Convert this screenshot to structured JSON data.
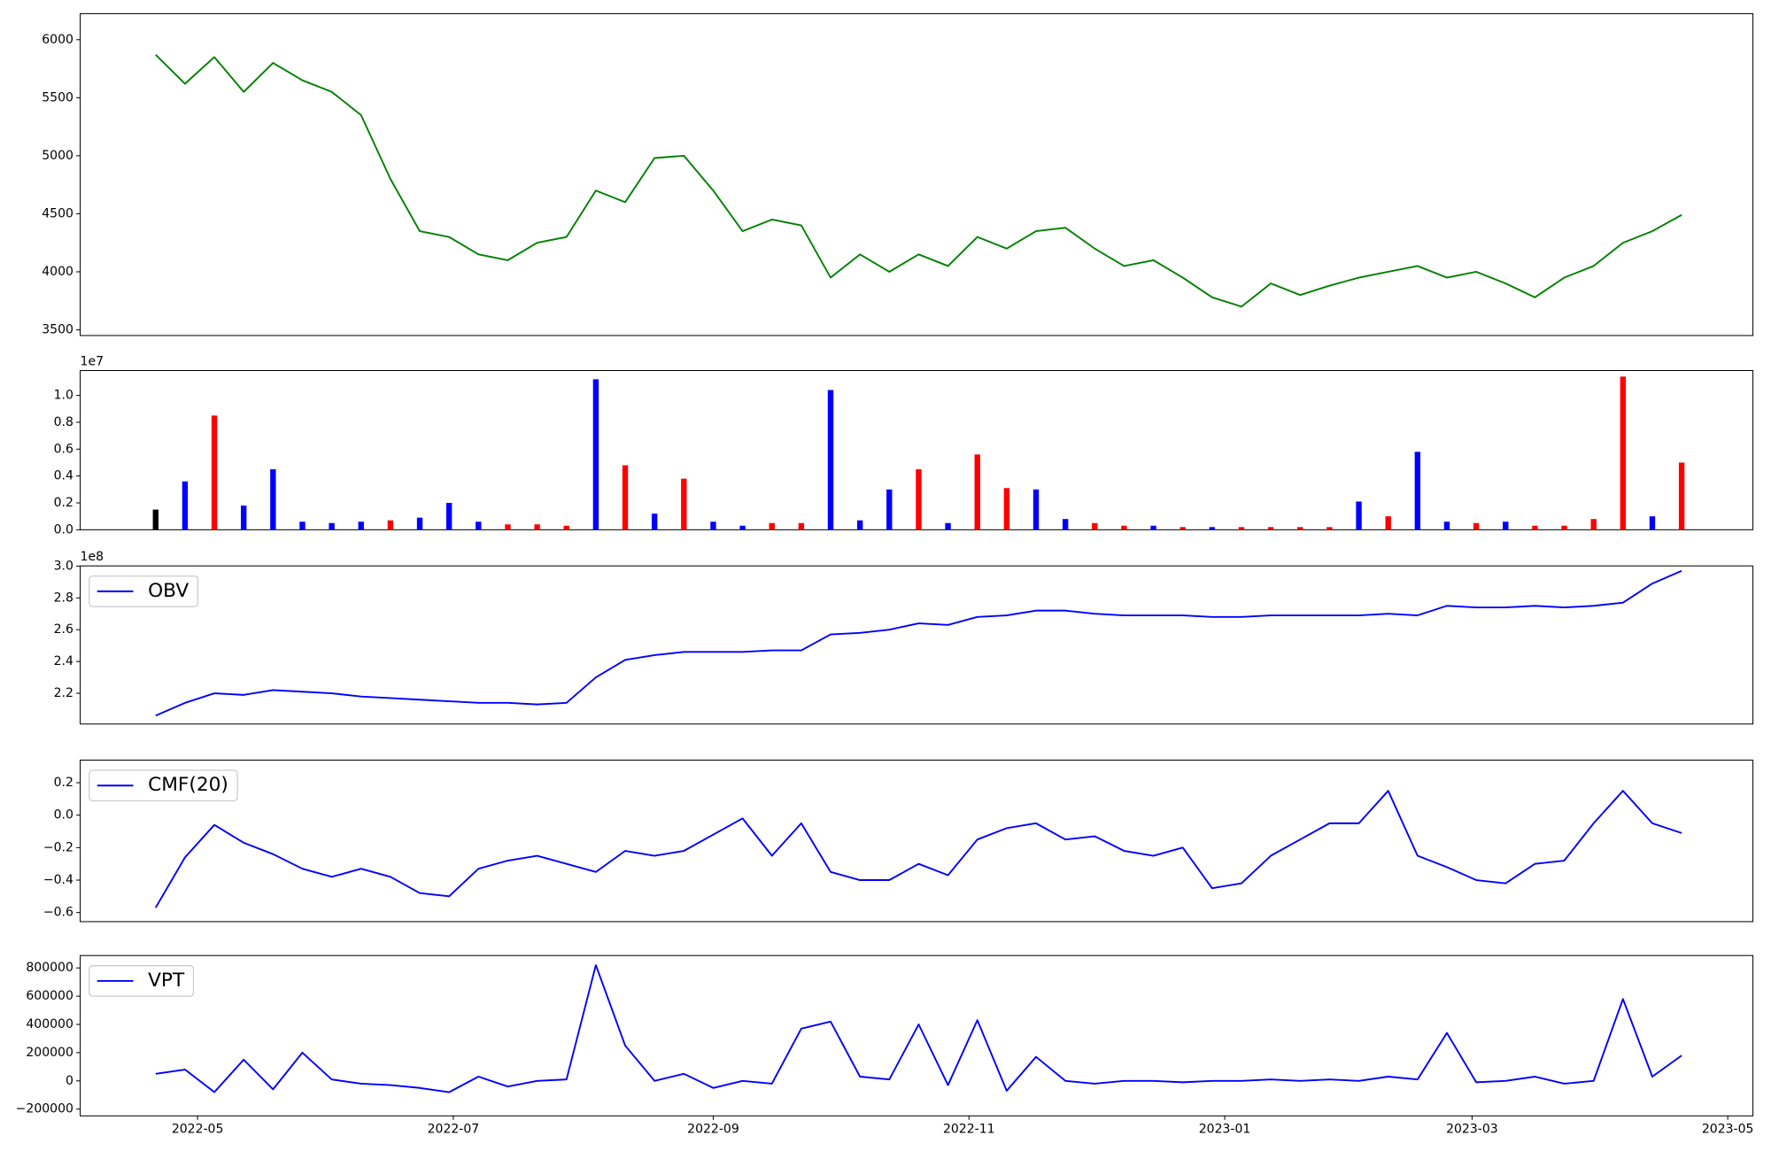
{
  "chart_data": [
    {
      "type": "line",
      "color": "green",
      "x": [
        "2022-04-21",
        "2022-04-28",
        "2022-05-05",
        "2022-05-12",
        "2022-05-19",
        "2022-05-26",
        "2022-06-02",
        "2022-06-09",
        "2022-06-16",
        "2022-06-23",
        "2022-06-30",
        "2022-07-07",
        "2022-07-14",
        "2022-07-21",
        "2022-07-28",
        "2022-08-04",
        "2022-08-11",
        "2022-08-18",
        "2022-08-25",
        "2022-09-01",
        "2022-09-08",
        "2022-09-15",
        "2022-09-22",
        "2022-09-29",
        "2022-10-06",
        "2022-10-13",
        "2022-10-20",
        "2022-10-27",
        "2022-11-03",
        "2022-11-10",
        "2022-11-17",
        "2022-11-24",
        "2022-12-01",
        "2022-12-08",
        "2022-12-15",
        "2022-12-22",
        "2022-12-29",
        "2023-01-05",
        "2023-01-12",
        "2023-01-19",
        "2023-01-26",
        "2023-02-02",
        "2023-02-09",
        "2023-02-16",
        "2023-02-23",
        "2023-03-02",
        "2023-03-09",
        "2023-03-16",
        "2023-03-23",
        "2023-03-30",
        "2023-04-06",
        "2023-04-13",
        "2023-04-20"
      ],
      "values": [
        5870,
        5620,
        5850,
        5550,
        5800,
        5650,
        5550,
        5350,
        4800,
        4350,
        4300,
        4150,
        4100,
        4250,
        4300,
        4700,
        4600,
        4980,
        5000,
        4700,
        4350,
        4450,
        4400,
        3950,
        4150,
        4000,
        4150,
        4050,
        4300,
        4200,
        4350,
        4380,
        4200,
        4050,
        4100,
        3950,
        3780,
        3700,
        3900,
        3800,
        3880,
        3950,
        4000,
        4050,
        3950,
        4000,
        3900,
        3780,
        3950,
        4050,
        4250,
        4350,
        4490
      ],
      "xlim": [
        "2022-04-03",
        "2023-05-07"
      ],
      "ylim": [
        3451,
        6224
      ],
      "yticks": [
        3500,
        4000,
        4500,
        5000,
        5500,
        6000
      ]
    },
    {
      "type": "bar",
      "offset_label": "1e7",
      "x": [
        "2022-04-21",
        "2022-04-28",
        "2022-05-05",
        "2022-05-12",
        "2022-05-19",
        "2022-05-26",
        "2022-06-02",
        "2022-06-09",
        "2022-06-16",
        "2022-06-23",
        "2022-06-30",
        "2022-07-07",
        "2022-07-14",
        "2022-07-21",
        "2022-07-28",
        "2022-08-04",
        "2022-08-11",
        "2022-08-18",
        "2022-08-25",
        "2022-09-01",
        "2022-09-08",
        "2022-09-15",
        "2022-09-22",
        "2022-09-29",
        "2022-10-06",
        "2022-10-13",
        "2022-10-20",
        "2022-10-27",
        "2022-11-03",
        "2022-11-10",
        "2022-11-17",
        "2022-11-24",
        "2022-12-01",
        "2022-12-08",
        "2022-12-15",
        "2022-12-22",
        "2022-12-29",
        "2023-01-05",
        "2023-01-12",
        "2023-01-19",
        "2023-01-26",
        "2023-02-02",
        "2023-02-09",
        "2023-02-16",
        "2023-02-23",
        "2023-03-02",
        "2023-03-09",
        "2023-03-16",
        "2023-03-23",
        "2023-03-30",
        "2023-04-06",
        "2023-04-13",
        "2023-04-20"
      ],
      "values": [
        1500000,
        3600000,
        8500000,
        1800000,
        4500000,
        600000,
        500000,
        600000,
        700000,
        900000,
        2000000,
        600000,
        400000,
        400000,
        300000,
        11200000,
        4800000,
        1200000,
        3800000,
        600000,
        300000,
        500000,
        500000,
        10400000,
        700000,
        3000000,
        4500000,
        500000,
        5600000,
        3100000,
        3000000,
        800000,
        500000,
        300000,
        300000,
        200000,
        200000,
        200000,
        200000,
        200000,
        200000,
        2100000,
        1000000,
        5800000,
        600000,
        500000,
        600000,
        300000,
        300000,
        800000,
        11400000,
        1000000,
        5000000
      ],
      "colors": [
        "black",
        "blue",
        "red",
        "blue",
        "blue",
        "blue",
        "blue",
        "blue",
        "red",
        "blue",
        "blue",
        "blue",
        "red",
        "red",
        "red",
        "blue",
        "red",
        "blue",
        "red",
        "blue",
        "blue",
        "red",
        "red",
        "blue",
        "blue",
        "blue",
        "red",
        "blue",
        "red",
        "red",
        "blue",
        "blue",
        "red",
        "red",
        "blue",
        "red",
        "blue",
        "red",
        "red",
        "red",
        "red",
        "blue",
        "red",
        "blue",
        "blue",
        "red",
        "blue",
        "red",
        "red",
        "red",
        "red",
        "blue",
        "red"
      ],
      "xlim": [
        "2022-04-03",
        "2023-05-07"
      ],
      "ylim": [
        0,
        11850000
      ],
      "yticks": [
        {
          "value": 0,
          "label": "0.0"
        },
        {
          "value": 2000000,
          "label": "0.2"
        },
        {
          "value": 4000000,
          "label": "0.4"
        },
        {
          "value": 6000000,
          "label": "0.6"
        },
        {
          "value": 8000000,
          "label": "0.8"
        },
        {
          "value": 10000000,
          "label": "1.0"
        }
      ]
    },
    {
      "type": "line",
      "offset_label": "1e8",
      "legend": "upper left",
      "x": [
        "2022-04-21",
        "2022-04-28",
        "2022-05-05",
        "2022-05-12",
        "2022-05-19",
        "2022-05-26",
        "2022-06-02",
        "2022-06-09",
        "2022-06-16",
        "2022-06-23",
        "2022-06-30",
        "2022-07-07",
        "2022-07-14",
        "2022-07-21",
        "2022-07-28",
        "2022-08-04",
        "2022-08-11",
        "2022-08-18",
        "2022-08-25",
        "2022-09-01",
        "2022-09-08",
        "2022-09-15",
        "2022-09-22",
        "2022-09-29",
        "2022-10-06",
        "2022-10-13",
        "2022-10-20",
        "2022-10-27",
        "2022-11-03",
        "2022-11-10",
        "2022-11-17",
        "2022-11-24",
        "2022-12-01",
        "2022-12-08",
        "2022-12-15",
        "2022-12-22",
        "2022-12-29",
        "2023-01-05",
        "2023-01-12",
        "2023-01-19",
        "2023-01-26",
        "2023-02-02",
        "2023-02-09",
        "2023-02-16",
        "2023-02-23",
        "2023-03-02",
        "2023-03-09",
        "2023-03-16",
        "2023-03-23",
        "2023-03-30",
        "2023-04-06",
        "2023-04-13",
        "2023-04-20"
      ],
      "series": [
        {
          "name": "OBV",
          "color": "blue",
          "values": [
            206000000,
            214000000,
            220000000,
            219000000,
            222000000,
            221000000,
            220000000,
            218000000,
            217000000,
            216000000,
            215000000,
            214000000,
            214000000,
            213000000,
            214000000,
            230000000,
            241000000,
            244000000,
            246000000,
            246000000,
            246000000,
            247000000,
            247000000,
            257000000,
            258000000,
            260000000,
            264000000,
            263000000,
            268000000,
            269000000,
            272000000,
            272000000,
            270000000,
            269000000,
            269000000,
            269000000,
            268000000,
            268000000,
            269000000,
            269000000,
            269000000,
            269000000,
            270000000,
            269000000,
            275000000,
            274000000,
            274000000,
            275000000,
            274000000,
            275000000,
            277000000,
            289000000,
            297000000
          ]
        }
      ],
      "xlim": [
        "2022-04-03",
        "2023-05-07"
      ],
      "ylim": [
        200700000,
        300100000
      ],
      "yticks": [
        {
          "value": 220000000,
          "label": "2.2"
        },
        {
          "value": 240000000,
          "label": "2.4"
        },
        {
          "value": 260000000,
          "label": "2.6"
        },
        {
          "value": 280000000,
          "label": "2.8"
        },
        {
          "value": 300000000,
          "label": "3.0"
        }
      ]
    },
    {
      "type": "line",
      "legend": "upper left",
      "x": [
        "2022-04-21",
        "2022-04-28",
        "2022-05-05",
        "2022-05-12",
        "2022-05-19",
        "2022-05-26",
        "2022-06-02",
        "2022-06-09",
        "2022-06-16",
        "2022-06-23",
        "2022-06-30",
        "2022-07-07",
        "2022-07-14",
        "2022-07-21",
        "2022-07-28",
        "2022-08-04",
        "2022-08-11",
        "2022-08-18",
        "2022-08-25",
        "2022-09-01",
        "2022-09-08",
        "2022-09-15",
        "2022-09-22",
        "2022-09-29",
        "2022-10-06",
        "2022-10-13",
        "2022-10-20",
        "2022-10-27",
        "2022-11-03",
        "2022-11-10",
        "2022-11-17",
        "2022-11-24",
        "2022-12-01",
        "2022-12-08",
        "2022-12-15",
        "2022-12-22",
        "2022-12-29",
        "2023-01-05",
        "2023-01-12",
        "2023-01-19",
        "2023-01-26",
        "2023-02-02",
        "2023-02-09",
        "2023-02-16",
        "2023-02-23",
        "2023-03-02",
        "2023-03-09",
        "2023-03-16",
        "2023-03-23",
        "2023-03-30",
        "2023-04-06",
        "2023-04-13",
        "2023-04-20"
      ],
      "series": [
        {
          "name": "CMF(20)",
          "color": "blue",
          "values": [
            -0.57,
            -0.26,
            -0.06,
            -0.17,
            -0.24,
            -0.33,
            -0.38,
            -0.33,
            -0.38,
            -0.48,
            -0.5,
            -0.33,
            -0.28,
            -0.25,
            -0.3,
            -0.35,
            -0.22,
            -0.25,
            -0.22,
            -0.12,
            -0.02,
            -0.25,
            -0.05,
            -0.35,
            -0.4,
            -0.4,
            -0.3,
            -0.37,
            -0.15,
            -0.08,
            -0.05,
            -0.15,
            -0.13,
            -0.22,
            -0.25,
            -0.2,
            -0.45,
            -0.42,
            -0.25,
            -0.15,
            -0.05,
            -0.05,
            0.15,
            -0.25,
            -0.32,
            -0.4,
            -0.42,
            -0.3,
            -0.28,
            -0.05,
            0.15,
            -0.05,
            -0.11
          ]
        }
      ],
      "xlim": [
        "2022-04-03",
        "2023-05-07"
      ],
      "ylim": [
        -0.656,
        0.339
      ],
      "yticks": [
        {
          "value": -0.6,
          "label": "−0.6"
        },
        {
          "value": -0.4,
          "label": "−0.4"
        },
        {
          "value": -0.2,
          "label": "−0.2"
        },
        {
          "value": 0,
          "label": "0.0"
        },
        {
          "value": 0.2,
          "label": "0.2"
        }
      ]
    },
    {
      "type": "line",
      "legend": "upper left",
      "x": [
        "2022-04-21",
        "2022-04-28",
        "2022-05-05",
        "2022-05-12",
        "2022-05-19",
        "2022-05-26",
        "2022-06-02",
        "2022-06-09",
        "2022-06-16",
        "2022-06-23",
        "2022-06-30",
        "2022-07-07",
        "2022-07-14",
        "2022-07-21",
        "2022-07-28",
        "2022-08-04",
        "2022-08-11",
        "2022-08-18",
        "2022-08-25",
        "2022-09-01",
        "2022-09-08",
        "2022-09-15",
        "2022-09-22",
        "2022-09-29",
        "2022-10-06",
        "2022-10-13",
        "2022-10-20",
        "2022-10-27",
        "2022-11-03",
        "2022-11-10",
        "2022-11-17",
        "2022-11-24",
        "2022-12-01",
        "2022-12-08",
        "2022-12-15",
        "2022-12-22",
        "2022-12-29",
        "2023-01-05",
        "2023-01-12",
        "2023-01-19",
        "2023-01-26",
        "2023-02-02",
        "2023-02-09",
        "2023-02-16",
        "2023-02-23",
        "2023-03-02",
        "2023-03-09",
        "2023-03-16",
        "2023-03-23",
        "2023-03-30",
        "2023-04-06",
        "2023-04-13",
        "2023-04-20"
      ],
      "series": [
        {
          "name": "VPT",
          "color": "blue",
          "values": [
            50000,
            80000,
            -80000,
            150000,
            -60000,
            200000,
            10000,
            -20000,
            -30000,
            -50000,
            -80000,
            30000,
            -40000,
            0,
            10000,
            820000,
            250000,
            0,
            50000,
            -50000,
            0,
            -20000,
            370000,
            420000,
            30000,
            10000,
            400000,
            -30000,
            430000,
            -70000,
            170000,
            0,
            -20000,
            0,
            0,
            -10000,
            0,
            0,
            10000,
            0,
            10000,
            0,
            30000,
            10000,
            340000,
            -10000,
            0,
            30000,
            -20000,
            0,
            580000,
            30000,
            180000
          ]
        }
      ],
      "xlim": [
        "2022-04-03",
        "2023-05-07"
      ],
      "ylim": [
        -248000,
        888000
      ],
      "yticks": [
        {
          "value": -200000,
          "label": "−200000"
        },
        0,
        200000,
        400000,
        600000,
        800000
      ],
      "xticks": [
        {
          "value": "2022-05-01",
          "label": "2022-05"
        },
        {
          "value": "2022-07-01",
          "label": "2022-07"
        },
        {
          "value": "2022-09-01",
          "label": "2022-09"
        },
        {
          "value": "2022-11-01",
          "label": "2022-11"
        },
        {
          "value": "2023-01-01",
          "label": "2023-01"
        },
        {
          "value": "2023-03-01",
          "label": "2023-03"
        },
        {
          "value": "2023-05-01",
          "label": "2023-05"
        }
      ]
    }
  ]
}
